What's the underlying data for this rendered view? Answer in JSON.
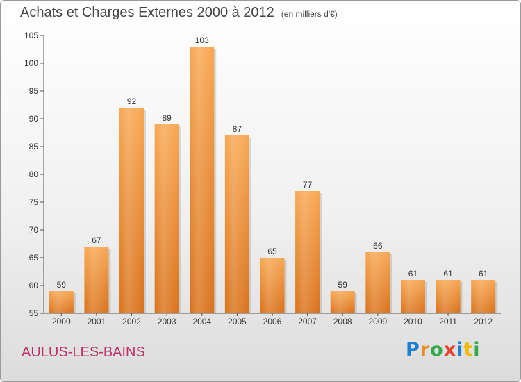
{
  "title": {
    "main": "Achats et Charges Externes 2000 à 2012",
    "unit": "(en milliers d'€)"
  },
  "commune": "AULUS-LES-BAINS",
  "brand": {
    "letters": [
      "P",
      "r",
      "o",
      "x",
      "i",
      "t",
      "i"
    ],
    "colors": [
      "#1e7fd0",
      "#f08a1c",
      "#34a84a",
      "#e63f2c",
      "#1e7fd0",
      "#f5b800",
      "#34a84a"
    ]
  },
  "chart_data": {
    "type": "bar",
    "title": "Achats et Charges Externes 2000 à 2012",
    "subtitle": "(en milliers d'€)",
    "xlabel": "",
    "ylabel": "",
    "categories": [
      "2000",
      "2001",
      "2002",
      "2003",
      "2004",
      "2005",
      "2006",
      "2007",
      "2008",
      "2009",
      "2010",
      "2011",
      "2012"
    ],
    "values": [
      59,
      67,
      92,
      89,
      103,
      87,
      65,
      77,
      59,
      66,
      61,
      61,
      61
    ],
    "ylim": [
      55,
      105
    ],
    "yticks": [
      55,
      60,
      65,
      70,
      75,
      80,
      85,
      90,
      95,
      100,
      105
    ],
    "grid": false,
    "legend": "none",
    "bar_color": "#f28f2c"
  }
}
